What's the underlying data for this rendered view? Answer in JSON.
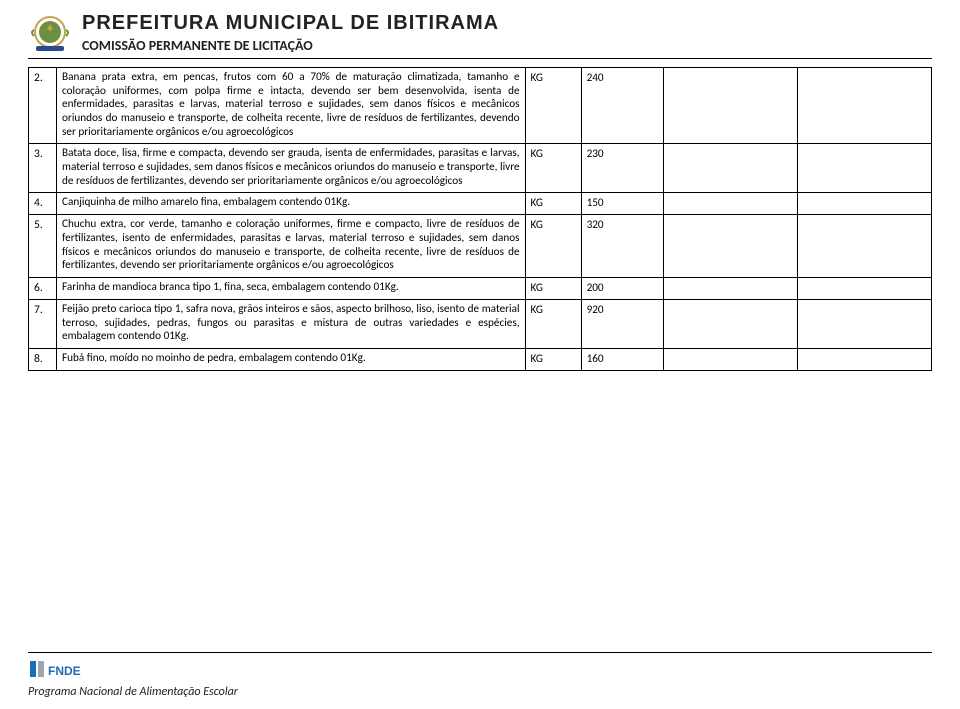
{
  "header": {
    "title": "PREFEITURA MUNICIPAL DE IBITIRAMA",
    "subtitle": "COMISSÃO PERMANENTE DE LICITAÇÃO"
  },
  "rows": [
    {
      "num": "2.",
      "desc": "Banana prata extra, em pencas, frutos com 60 a 70% de maturação climatizada, tamanho e coloração uniformes, com polpa firme e intacta, devendo ser bem desenvolvida, isenta de enfermidades, parasitas e larvas, material terroso e sujidades, sem danos físicos e mecânicos oriundos do manuseio e transporte, de colheita recente, livre de resíduos de fertilizantes, devendo ser prioritariamente orgânicos e/ou agroecológicos",
      "unit": "KG",
      "qty": "240"
    },
    {
      "num": "3.",
      "desc": "Batata doce, lisa, firme e compacta, devendo ser grauda, isenta de enfermidades, parasitas e larvas, material terroso e sujidades, sem danos físicos e mecânicos oriundos do manuseio e transporte, livre de resíduos de fertilizantes, devendo ser prioritariamente orgânicos e/ou agroecológicos",
      "unit": "KG",
      "qty": "230"
    },
    {
      "num": "4.",
      "desc": "Canjiquinha de milho amarelo fina, embalagem contendo 01Kg.",
      "unit": "KG",
      "qty": "150"
    },
    {
      "num": "5.",
      "desc": "Chuchu extra, cor verde, tamanho e coloração uniformes, firme e compacto, livre de resíduos de fertilizantes, isento de enfermidades, parasitas e larvas, material terroso e sujidades, sem danos físicos e mecânicos oriundos do manuseio e transporte, de colheita recente, livre de resíduos de fertilizantes, devendo ser prioritariamente orgânicos e/ou agroecológicos",
      "unit": "KG",
      "qty": "320"
    },
    {
      "num": "6.",
      "desc": "Farinha de mandioca branca tipo 1, fina, seca, embalagem contendo 01Kg.",
      "unit": "KG",
      "qty": "200"
    },
    {
      "num": "7.",
      "desc": "Feijão preto carioca tipo 1, safra nova, grãos inteiros e sãos, aspecto brilhoso, liso, isento de material terroso, sujidades, pedras, fungos ou parasitas e mistura de outras variedades e espécies, embalagem contendo 01Kg.",
      "unit": "KG",
      "qty": "920"
    },
    {
      "num": "8.",
      "desc": "Fubá fino, moído no moinho de pedra, embalagem contendo 01Kg.",
      "unit": "KG",
      "qty": "160"
    }
  ],
  "footer": {
    "program": "Programa Nacional de Alimentação Escolar"
  },
  "colors": {
    "seal_badge": "#6b8f3f",
    "seal_badge_ring": "#c9a34b",
    "seal_ribbon": "#2b4a88",
    "fnde_blue": "#1f6bb7",
    "fnde_gray": "#9aa6b2"
  }
}
